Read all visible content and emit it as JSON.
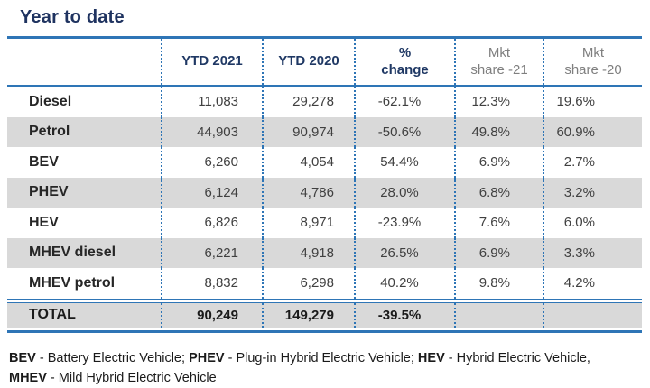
{
  "page": {
    "title": "Year to date"
  },
  "colors": {
    "title_navy": "#1f3360",
    "header_navy": "#1f3864",
    "line_blue": "#2e75b6",
    "header_gray": "#7f7f7f",
    "row_alt_gray": "#d9d9d9",
    "value_gray": "#404040",
    "label_black": "#262626"
  },
  "table": {
    "header": {
      "ytd2021": "YTD 2021",
      "ytd2020": "YTD 2020",
      "pct_change_line1": "%",
      "pct_change_line2": "change",
      "mkt21_line1": "Mkt",
      "mkt21_line2": "share -21",
      "mkt20_line1": "Mkt",
      "mkt20_line2": "share -20"
    },
    "rows": [
      {
        "label": "Diesel",
        "ytd2021": "11,083",
        "ytd2020": "29,278",
        "pct_change": "-62.1%",
        "mkt21": "12.3%",
        "mkt20": "19.6%"
      },
      {
        "label": "Petrol",
        "ytd2021": "44,903",
        "ytd2020": "90,974",
        "pct_change": "-50.6%",
        "mkt21": "49.8%",
        "mkt20": "60.9%"
      },
      {
        "label": "BEV",
        "ytd2021": "6,260",
        "ytd2020": "4,054",
        "pct_change": "54.4%",
        "mkt21": "6.9%",
        "mkt20": "2.7%"
      },
      {
        "label": "PHEV",
        "ytd2021": "6,124",
        "ytd2020": "4,786",
        "pct_change": "28.0%",
        "mkt21": "6.8%",
        "mkt20": "3.2%"
      },
      {
        "label": "HEV",
        "ytd2021": "6,826",
        "ytd2020": "8,971",
        "pct_change": "-23.9%",
        "mkt21": "7.6%",
        "mkt20": "6.0%"
      },
      {
        "label": "MHEV diesel",
        "ytd2021": "6,221",
        "ytd2020": "4,918",
        "pct_change": "26.5%",
        "mkt21": "6.9%",
        "mkt20": "3.3%"
      },
      {
        "label": "MHEV petrol",
        "ytd2021": "8,832",
        "ytd2020": "6,298",
        "pct_change": "40.2%",
        "mkt21": "9.8%",
        "mkt20": "4.2%"
      }
    ],
    "total": {
      "label": "TOTAL",
      "ytd2021": "90,249",
      "ytd2020": "149,279",
      "pct_change": "-39.5%",
      "mkt21": "",
      "mkt20": ""
    }
  },
  "footnote": {
    "bev_abbr": "BEV",
    "bev_def": " - Battery Electric Vehicle; ",
    "phev_abbr": "PHEV",
    "phev_def": " - Plug-in Hybrid Electric Vehicle; ",
    "hev_abbr": "HEV",
    "hev_def": " - Hybrid Electric Vehicle,",
    "mhev_abbr": "MHEV",
    "mhev_def": " - Mild Hybrid Electric Vehicle"
  },
  "chart_data": {
    "type": "table",
    "title": "Year to date",
    "columns": [
      "YTD 2021",
      "YTD 2020",
      "% change",
      "Mkt share -21",
      "Mkt share -20"
    ],
    "rows": [
      {
        "category": "Diesel",
        "ytd_2021": 11083,
        "ytd_2020": 29278,
        "pct_change": -62.1,
        "mkt_share_21": 12.3,
        "mkt_share_20": 19.6
      },
      {
        "category": "Petrol",
        "ytd_2021": 44903,
        "ytd_2020": 90974,
        "pct_change": -50.6,
        "mkt_share_21": 49.8,
        "mkt_share_20": 60.9
      },
      {
        "category": "BEV",
        "ytd_2021": 6260,
        "ytd_2020": 4054,
        "pct_change": 54.4,
        "mkt_share_21": 6.9,
        "mkt_share_20": 2.7
      },
      {
        "category": "PHEV",
        "ytd_2021": 6124,
        "ytd_2020": 4786,
        "pct_change": 28.0,
        "mkt_share_21": 6.8,
        "mkt_share_20": 3.2
      },
      {
        "category": "HEV",
        "ytd_2021": 6826,
        "ytd_2020": 8971,
        "pct_change": -23.9,
        "mkt_share_21": 7.6,
        "mkt_share_20": 6.0
      },
      {
        "category": "MHEV diesel",
        "ytd_2021": 6221,
        "ytd_2020": 4918,
        "pct_change": 26.5,
        "mkt_share_21": 6.9,
        "mkt_share_20": 3.3
      },
      {
        "category": "MHEV petrol",
        "ytd_2021": 8832,
        "ytd_2020": 6298,
        "pct_change": 40.2,
        "mkt_share_21": 9.8,
        "mkt_share_20": 4.2
      }
    ],
    "total": {
      "category": "TOTAL",
      "ytd_2021": 90249,
      "ytd_2020": 149279,
      "pct_change": -39.5
    }
  }
}
